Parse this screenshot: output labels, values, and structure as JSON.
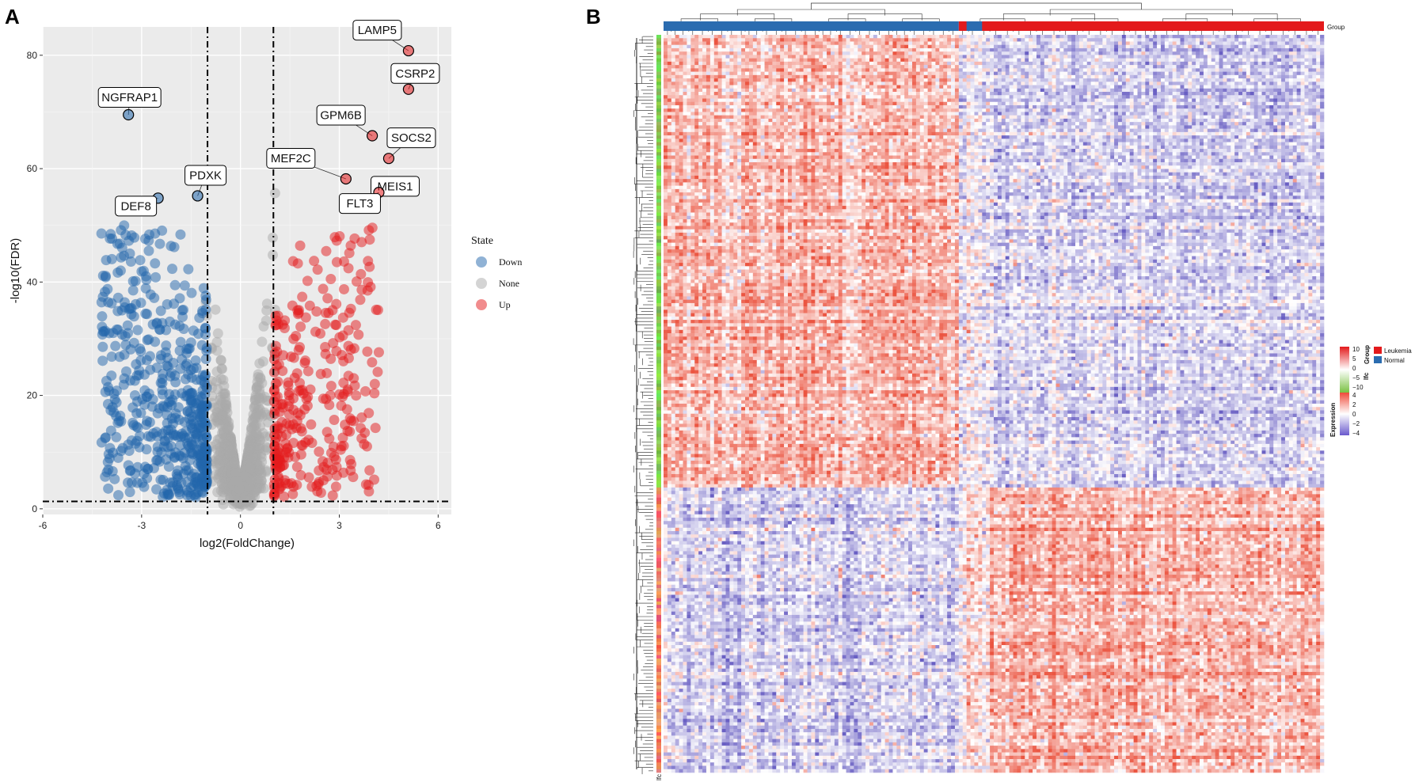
{
  "panels": {
    "a": "A",
    "b": "B"
  },
  "chart_data": [
    {
      "type": "scatter",
      "subtype": "volcano",
      "xlabel": "log2(FoldChange)",
      "ylabel": "-log10(FDR)",
      "xlim": [
        -6,
        6.4
      ],
      "ylim": [
        -1,
        85
      ],
      "xticks": [
        -6,
        -3,
        0,
        3,
        6
      ],
      "yticks": [
        0,
        20,
        40,
        60,
        80
      ],
      "thresholds": {
        "log2fc": [
          -1,
          1
        ],
        "neg_log10_fdr": 1.3
      },
      "legend": {
        "title": "State",
        "entries": [
          {
            "label": "Down",
            "color": "#2166ac"
          },
          {
            "label": "None",
            "color": "#a9a9a9"
          },
          {
            "label": "Up",
            "color": "#e31a1c"
          }
        ]
      },
      "labeled_points": [
        {
          "label": "LAMP5",
          "x": 5.1,
          "y": 80.8,
          "state": "Up"
        },
        {
          "label": "CSRP2",
          "x": 5.1,
          "y": 74.0,
          "state": "Up"
        },
        {
          "label": "NGFRAP1",
          "x": -3.4,
          "y": 69.5,
          "state": "Down"
        },
        {
          "label": "GPM6B",
          "x": 4.0,
          "y": 65.8,
          "state": "Up"
        },
        {
          "label": "SOCS2",
          "x": 4.5,
          "y": 61.8,
          "state": "Up"
        },
        {
          "label": "MEF2C",
          "x": 3.2,
          "y": 58.2,
          "state": "Up"
        },
        {
          "label": "MEIS1",
          "x": 4.2,
          "y": 56.6,
          "state": "Up"
        },
        {
          "label": "FLT3",
          "x": 4.2,
          "y": 55.8,
          "state": "Up"
        },
        {
          "label": "PDXK",
          "x": -1.3,
          "y": 55.2,
          "state": "Down"
        },
        {
          "label": "DEF8",
          "x": -2.5,
          "y": 54.8,
          "state": "Down"
        }
      ]
    },
    {
      "type": "heatmap",
      "annotation_title": "Group",
      "row_annotation_label": "lfc",
      "groups": [
        {
          "label": "Leukemia",
          "color": "#e31a1c"
        },
        {
          "label": "Normal",
          "color": "#2b6cb0"
        }
      ],
      "lfc_legend": {
        "title": "lfc",
        "ticks": [
          "10",
          "5",
          "0",
          "−5",
          "−10"
        ]
      },
      "expression_legend": {
        "title": "Expression",
        "ticks": [
          "4",
          "2",
          "0",
          "−2",
          "−4"
        ]
      }
    }
  ]
}
